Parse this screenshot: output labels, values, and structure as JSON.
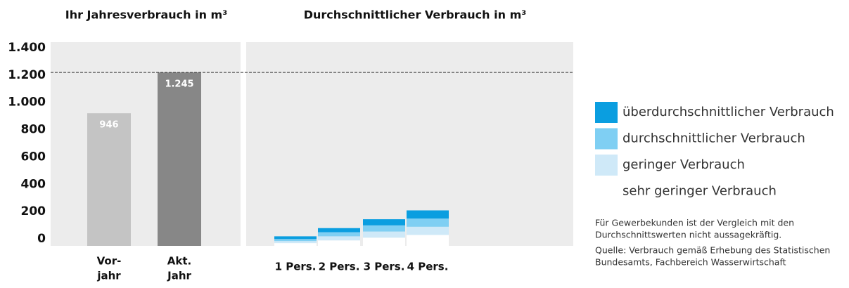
{
  "chart_data": [
    {
      "type": "bar",
      "title": "Ihr Jahresverbrauch in m³",
      "categories": [
        [
          "Vor-",
          "jahr"
        ],
        [
          "Akt.",
          "Jahr"
        ]
      ],
      "values": [
        946,
        1245
      ],
      "value_labels": [
        "946",
        "1.245"
      ],
      "colors": [
        "#c4c4c4",
        "#878787"
      ],
      "ylim": [
        0,
        1400
      ],
      "yticks": [
        {
          "value": 0,
          "label": "0"
        },
        {
          "value": 200,
          "label": "200"
        },
        {
          "value": 400,
          "label": "400"
        },
        {
          "value": 600,
          "label": "600"
        },
        {
          "value": 800,
          "label": "800"
        },
        {
          "value": 1000,
          "label": "1.000"
        },
        {
          "value": 1200,
          "label": "1.200"
        },
        {
          "value": 1400,
          "label": "1.400"
        }
      ]
    },
    {
      "type": "stacked_bar",
      "title": "Durchschnittlicher Verbrauch in m³",
      "categories": [
        "1 Pers.",
        "2 Pers.",
        "3 Pers.",
        "4 Pers."
      ],
      "ylim": [
        0,
        1400
      ],
      "series": [
        {
          "name": "überdurchschnittlicher Verbrauch",
          "color": "#0a9ee0",
          "values": [
            20,
            30,
            45,
            60
          ]
        },
        {
          "name": "durchschnittlicher Verbrauch",
          "color": "#7fcff3",
          "values": [
            15,
            30,
            45,
            60
          ]
        },
        {
          "name": "geringer Verbrauch",
          "color": "#cfe9f8",
          "values": [
            15,
            30,
            45,
            60
          ]
        },
        {
          "name": "sehr geringer Verbrauch",
          "color": "#ffffff",
          "values": [
            20,
            40,
            60,
            80
          ]
        }
      ],
      "notes": [
        [
          "Für Gewerbekunden ist der Vergleich mit den",
          "Durchschnittswerten nicht aussagekräftig."
        ],
        [
          "Quelle: Verbrauch gemäß Erhebung des Statistischen",
          "Bundesamts, Fachbereich Wasserwirtschaft"
        ]
      ]
    }
  ]
}
